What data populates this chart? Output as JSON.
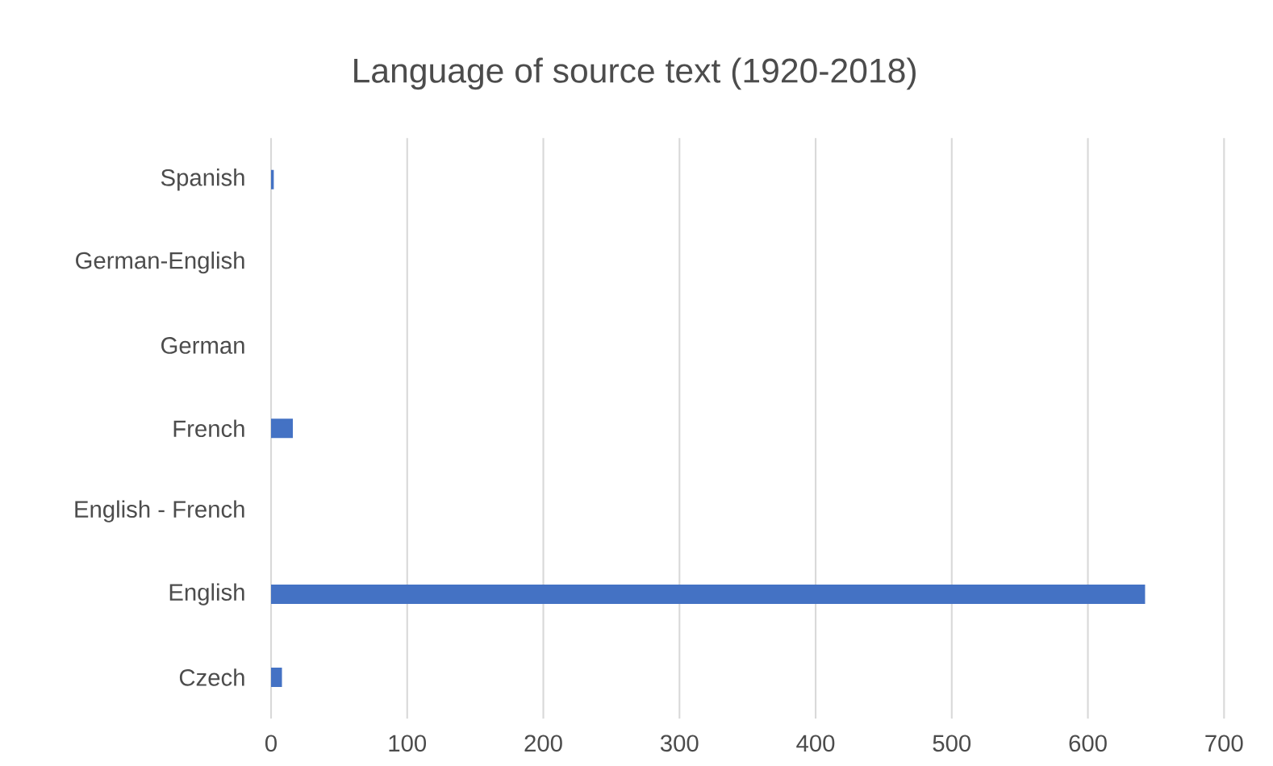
{
  "chart_data": {
    "type": "bar",
    "orientation": "horizontal",
    "title": "Language of source text (1920-2018)",
    "categories": [
      "Spanish",
      "German-English",
      "German",
      "French",
      "English - French",
      "English",
      "Czech"
    ],
    "values": [
      2,
      0,
      0,
      16,
      0,
      642,
      8
    ],
    "color": "#4472c4",
    "xlim": [
      0,
      700
    ],
    "xticks": [
      0,
      100,
      200,
      300,
      400,
      500,
      600,
      700
    ],
    "grid": "x"
  }
}
